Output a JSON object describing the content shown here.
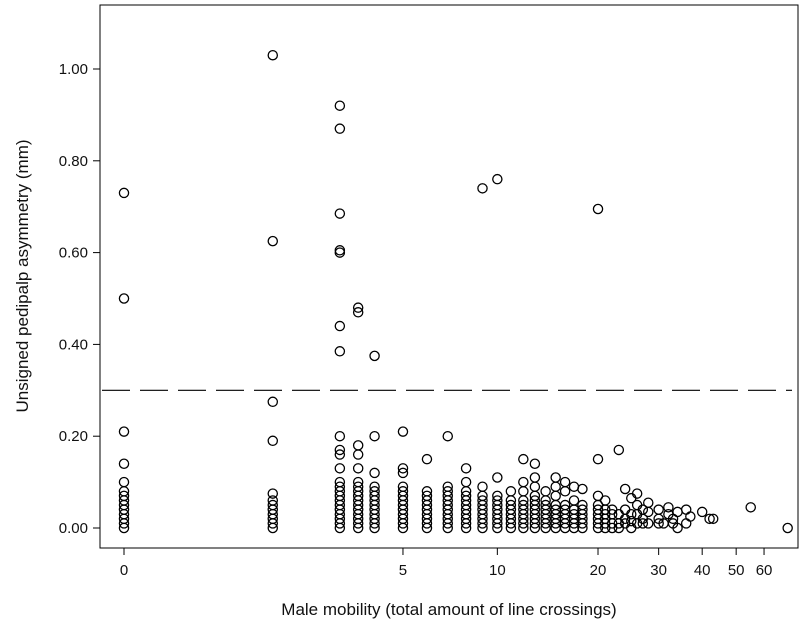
{
  "chart_data": {
    "type": "scatter",
    "title": "",
    "xlabel": "Male mobility (total amount of line crossings)",
    "ylabel": "Unsigned pedipalp asymmetry (mm)",
    "x_scale": "log(x+1)",
    "xlim": [
      0,
      72
    ],
    "ylim": [
      -0.05,
      1.13
    ],
    "x_ticks": [
      {
        "value": 0,
        "label": "0"
      },
      {
        "value": 5,
        "label": "5"
      },
      {
        "value": 10,
        "label": "10"
      },
      {
        "value": 20,
        "label": "20"
      },
      {
        "value": 30,
        "label": "30"
      },
      {
        "value": 40,
        "label": "40"
      },
      {
        "value": 50,
        "label": "50"
      },
      {
        "value": 60,
        "label": "60"
      }
    ],
    "y_ticks": [
      {
        "value": 0.0,
        "label": "0.00"
      },
      {
        "value": 0.2,
        "label": "0.20"
      },
      {
        "value": 0.4,
        "label": "0.40"
      },
      {
        "value": 0.6,
        "label": "0.60"
      },
      {
        "value": 0.8,
        "label": "0.80"
      },
      {
        "value": 1.0,
        "label": "1.00"
      }
    ],
    "reference_line": {
      "y": 0.3,
      "style": "dashed"
    },
    "grid": false,
    "legend": "none",
    "marker": "open-circle",
    "colors": {
      "marker": "#000000",
      "axis": "#000000",
      "reference_line": "#000000"
    },
    "points": [
      [
        0,
        0.73
      ],
      [
        0,
        0.5
      ],
      [
        0,
        0.21
      ],
      [
        0,
        0.14
      ],
      [
        0,
        0.1
      ],
      [
        0,
        0.08
      ],
      [
        0,
        0.07
      ],
      [
        0,
        0.06
      ],
      [
        0,
        0.05
      ],
      [
        0,
        0.04
      ],
      [
        0,
        0.03
      ],
      [
        0,
        0.02
      ],
      [
        0,
        0.01
      ],
      [
        0,
        0.0
      ],
      [
        1.6,
        1.03
      ],
      [
        1.6,
        0.625
      ],
      [
        1.6,
        0.275
      ],
      [
        1.6,
        0.19
      ],
      [
        1.6,
        0.075
      ],
      [
        1.6,
        0.06
      ],
      [
        1.6,
        0.05
      ],
      [
        1.6,
        0.04
      ],
      [
        1.6,
        0.03
      ],
      [
        1.6,
        0.02
      ],
      [
        1.6,
        0.01
      ],
      [
        1.6,
        0.0
      ],
      [
        3,
        0.92
      ],
      [
        3,
        0.87
      ],
      [
        3,
        0.685
      ],
      [
        3,
        0.605
      ],
      [
        3,
        0.6
      ],
      [
        3,
        0.44
      ],
      [
        3,
        0.385
      ],
      [
        3,
        0.2
      ],
      [
        3,
        0.17
      ],
      [
        3,
        0.16
      ],
      [
        3,
        0.13
      ],
      [
        3,
        0.1
      ],
      [
        3,
        0.09
      ],
      [
        3,
        0.08
      ],
      [
        3,
        0.07
      ],
      [
        3,
        0.06
      ],
      [
        3,
        0.05
      ],
      [
        3,
        0.04
      ],
      [
        3,
        0.03
      ],
      [
        3,
        0.02
      ],
      [
        3,
        0.01
      ],
      [
        3,
        0.0
      ],
      [
        3.5,
        0.48
      ],
      [
        3.5,
        0.47
      ],
      [
        3.5,
        0.18
      ],
      [
        3.5,
        0.16
      ],
      [
        3.5,
        0.13
      ],
      [
        3.5,
        0.1
      ],
      [
        3.5,
        0.09
      ],
      [
        3.5,
        0.08
      ],
      [
        3.5,
        0.07
      ],
      [
        3.5,
        0.06
      ],
      [
        3.5,
        0.05
      ],
      [
        3.5,
        0.04
      ],
      [
        3.5,
        0.03
      ],
      [
        3.5,
        0.02
      ],
      [
        3.5,
        0.01
      ],
      [
        3.5,
        0.0
      ],
      [
        4,
        0.375
      ],
      [
        4,
        0.2
      ],
      [
        4,
        0.12
      ],
      [
        4,
        0.09
      ],
      [
        4,
        0.08
      ],
      [
        4,
        0.07
      ],
      [
        4,
        0.06
      ],
      [
        4,
        0.05
      ],
      [
        4,
        0.04
      ],
      [
        4,
        0.03
      ],
      [
        4,
        0.02
      ],
      [
        4,
        0.01
      ],
      [
        4,
        0.0
      ],
      [
        5,
        0.21
      ],
      [
        5,
        0.13
      ],
      [
        5,
        0.12
      ],
      [
        5,
        0.09
      ],
      [
        5,
        0.08
      ],
      [
        5,
        0.07
      ],
      [
        5,
        0.06
      ],
      [
        5,
        0.05
      ],
      [
        5,
        0.04
      ],
      [
        5,
        0.03
      ],
      [
        5,
        0.02
      ],
      [
        5,
        0.01
      ],
      [
        5,
        0.0
      ],
      [
        6,
        0.15
      ],
      [
        6,
        0.08
      ],
      [
        6,
        0.07
      ],
      [
        6,
        0.06
      ],
      [
        6,
        0.05
      ],
      [
        6,
        0.04
      ],
      [
        6,
        0.03
      ],
      [
        6,
        0.02
      ],
      [
        6,
        0.01
      ],
      [
        6,
        0.0
      ],
      [
        7,
        0.2
      ],
      [
        7,
        0.09
      ],
      [
        7,
        0.08
      ],
      [
        7,
        0.07
      ],
      [
        7,
        0.06
      ],
      [
        7,
        0.05
      ],
      [
        7,
        0.04
      ],
      [
        7,
        0.03
      ],
      [
        7,
        0.02
      ],
      [
        7,
        0.01
      ],
      [
        7,
        0.0
      ],
      [
        8,
        0.13
      ],
      [
        8,
        0.1
      ],
      [
        8,
        0.08
      ],
      [
        8,
        0.07
      ],
      [
        8,
        0.06
      ],
      [
        8,
        0.05
      ],
      [
        8,
        0.04
      ],
      [
        8,
        0.03
      ],
      [
        8,
        0.02
      ],
      [
        8,
        0.01
      ],
      [
        8,
        0.0
      ],
      [
        9,
        0.74
      ],
      [
        9,
        0.09
      ],
      [
        9,
        0.07
      ],
      [
        9,
        0.06
      ],
      [
        9,
        0.05
      ],
      [
        9,
        0.04
      ],
      [
        9,
        0.03
      ],
      [
        9,
        0.02
      ],
      [
        9,
        0.01
      ],
      [
        9,
        0.0
      ],
      [
        10,
        0.76
      ],
      [
        10,
        0.11
      ],
      [
        10,
        0.07
      ],
      [
        10,
        0.06
      ],
      [
        10,
        0.05
      ],
      [
        10,
        0.04
      ],
      [
        10,
        0.03
      ],
      [
        10,
        0.02
      ],
      [
        10,
        0.01
      ],
      [
        10,
        0.0
      ],
      [
        11,
        0.08
      ],
      [
        11,
        0.06
      ],
      [
        11,
        0.05
      ],
      [
        11,
        0.04
      ],
      [
        11,
        0.03
      ],
      [
        11,
        0.02
      ],
      [
        11,
        0.01
      ],
      [
        11,
        0.0
      ],
      [
        12,
        0.15
      ],
      [
        12,
        0.1
      ],
      [
        12,
        0.08
      ],
      [
        12,
        0.06
      ],
      [
        12,
        0.05
      ],
      [
        12,
        0.04
      ],
      [
        12,
        0.03
      ],
      [
        12,
        0.02
      ],
      [
        12,
        0.01
      ],
      [
        12,
        0.0
      ],
      [
        13,
        0.14
      ],
      [
        13,
        0.11
      ],
      [
        13,
        0.09
      ],
      [
        13,
        0.07
      ],
      [
        13,
        0.06
      ],
      [
        13,
        0.05
      ],
      [
        13,
        0.04
      ],
      [
        13,
        0.03
      ],
      [
        13,
        0.02
      ],
      [
        13,
        0.01
      ],
      [
        13,
        0.0
      ],
      [
        14,
        0.08
      ],
      [
        14,
        0.06
      ],
      [
        14,
        0.05
      ],
      [
        14,
        0.04
      ],
      [
        14,
        0.03
      ],
      [
        14,
        0.02
      ],
      [
        14,
        0.01
      ],
      [
        14,
        0.0
      ],
      [
        15,
        0.11
      ],
      [
        15,
        0.09
      ],
      [
        15,
        0.07
      ],
      [
        15,
        0.05
      ],
      [
        15,
        0.04
      ],
      [
        15,
        0.03
      ],
      [
        15,
        0.02
      ],
      [
        15,
        0.01
      ],
      [
        15,
        0.0
      ],
      [
        16,
        0.1
      ],
      [
        16,
        0.08
      ],
      [
        16,
        0.05
      ],
      [
        16,
        0.04
      ],
      [
        16,
        0.03
      ],
      [
        16,
        0.02
      ],
      [
        16,
        0.01
      ],
      [
        16,
        0.0
      ],
      [
        17,
        0.09
      ],
      [
        17,
        0.06
      ],
      [
        17,
        0.04
      ],
      [
        17,
        0.03
      ],
      [
        17,
        0.02
      ],
      [
        17,
        0.01
      ],
      [
        17,
        0.0
      ],
      [
        18,
        0.085
      ],
      [
        18,
        0.05
      ],
      [
        18,
        0.04
      ],
      [
        18,
        0.03
      ],
      [
        18,
        0.02
      ],
      [
        18,
        0.01
      ],
      [
        18,
        0.0
      ],
      [
        20,
        0.695
      ],
      [
        20,
        0.15
      ],
      [
        20,
        0.07
      ],
      [
        20,
        0.05
      ],
      [
        20,
        0.04
      ],
      [
        20,
        0.03
      ],
      [
        20,
        0.02
      ],
      [
        20,
        0.01
      ],
      [
        20,
        0.0
      ],
      [
        21,
        0.06
      ],
      [
        21,
        0.04
      ],
      [
        21,
        0.03
      ],
      [
        21,
        0.02
      ],
      [
        21,
        0.01
      ],
      [
        21,
        0.0
      ],
      [
        22,
        0.04
      ],
      [
        22,
        0.03
      ],
      [
        22,
        0.01
      ],
      [
        22,
        0.0
      ],
      [
        23,
        0.17
      ],
      [
        23,
        0.03
      ],
      [
        23,
        0.01
      ],
      [
        23,
        0.0
      ],
      [
        24,
        0.085
      ],
      [
        24,
        0.04
      ],
      [
        24,
        0.02
      ],
      [
        24,
        0.01
      ],
      [
        25,
        0.065
      ],
      [
        25,
        0.03
      ],
      [
        25,
        0.015
      ],
      [
        25,
        0.0
      ],
      [
        26,
        0.075
      ],
      [
        26,
        0.05
      ],
      [
        26,
        0.03
      ],
      [
        26,
        0.01
      ],
      [
        27,
        0.04
      ],
      [
        27,
        0.02
      ],
      [
        27,
        0.01
      ],
      [
        28,
        0.055
      ],
      [
        28,
        0.035
      ],
      [
        28,
        0.01
      ],
      [
        30,
        0.04
      ],
      [
        30,
        0.02
      ],
      [
        30,
        0.01
      ],
      [
        31,
        0.01
      ],
      [
        32,
        0.045
      ],
      [
        32,
        0.03
      ],
      [
        33,
        0.02
      ],
      [
        33,
        0.01
      ],
      [
        34,
        0.035
      ],
      [
        34,
        0.0
      ],
      [
        36,
        0.04
      ],
      [
        36,
        0.01
      ],
      [
        37,
        0.025
      ],
      [
        40,
        0.035
      ],
      [
        42,
        0.02
      ],
      [
        43,
        0.02
      ],
      [
        55,
        0.045
      ],
      [
        70,
        0.0
      ]
    ]
  }
}
